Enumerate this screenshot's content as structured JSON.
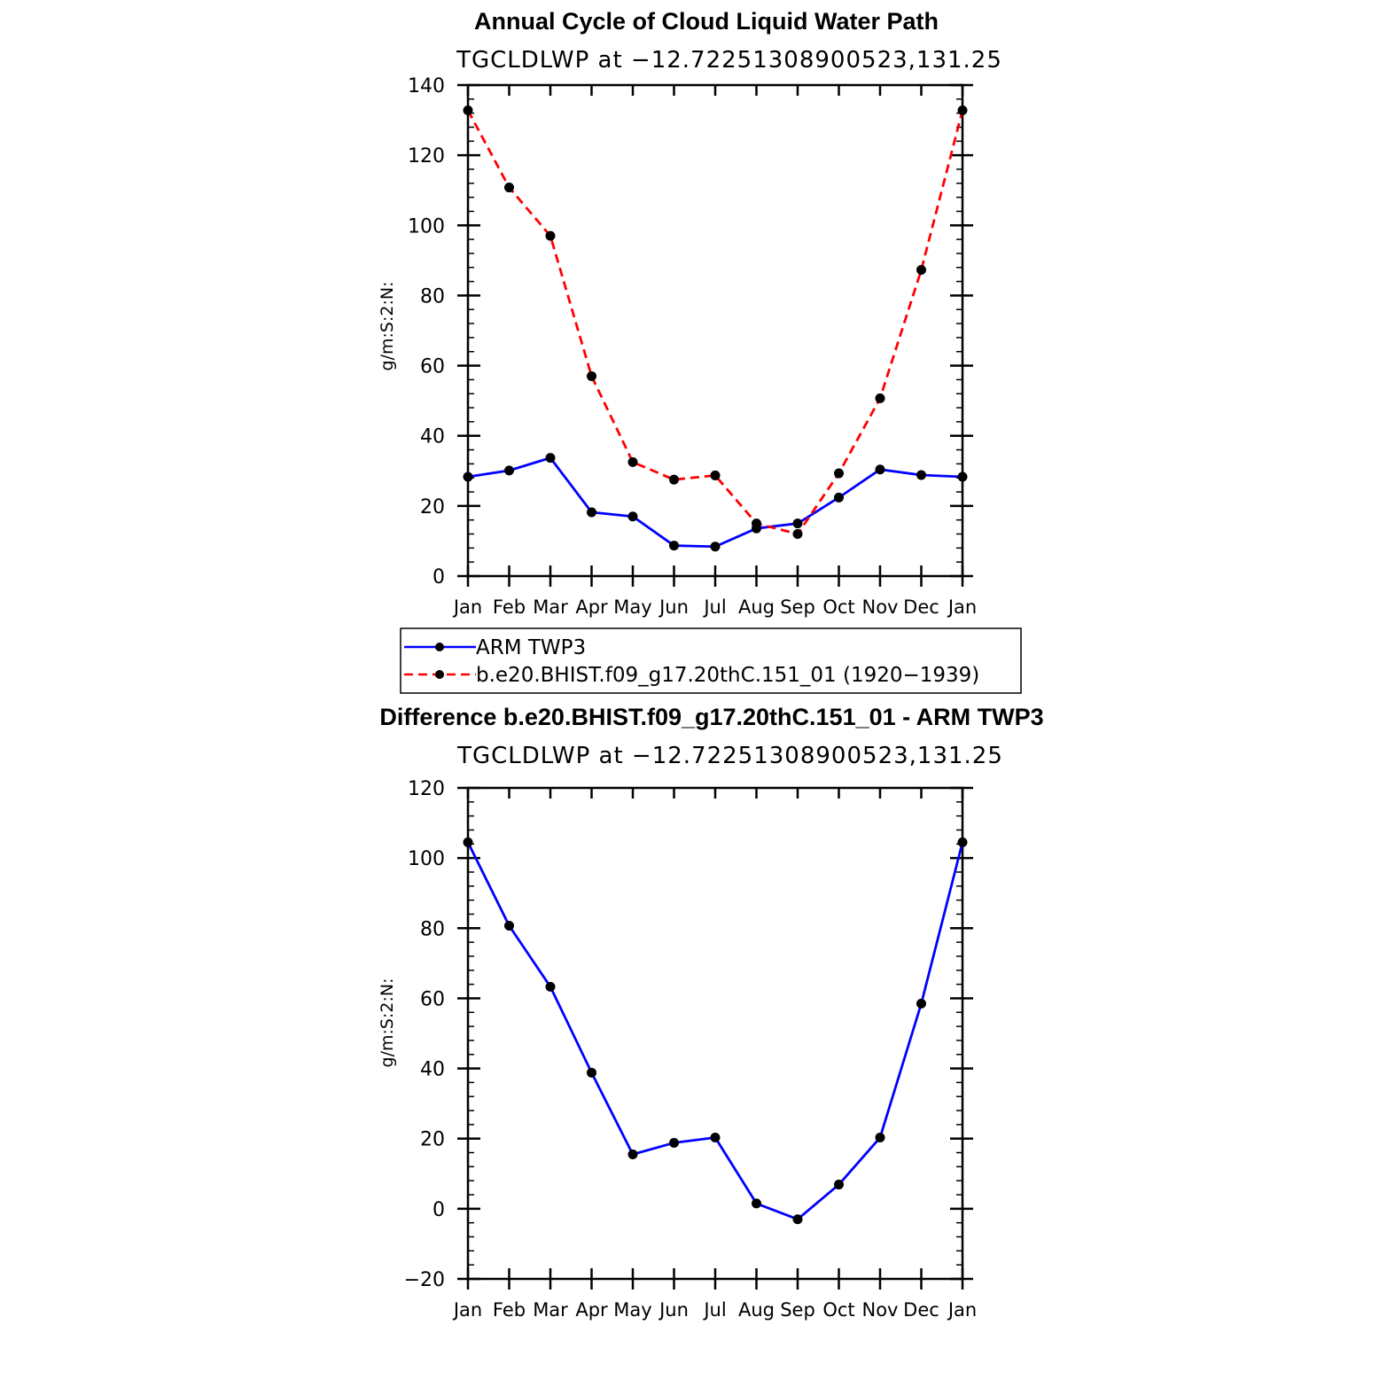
{
  "chart_data": [
    {
      "type": "line",
      "title": "Annual Cycle of Cloud Liquid Water Path",
      "subtitle": "TGCLDLWP  at  −12.72251308900523,131.25",
      "ylabel": "g/m:S:2:N:",
      "xlabel": "",
      "categories": [
        "Jan",
        "Feb",
        "Mar",
        "Apr",
        "May",
        "Jun",
        "Jul",
        "Aug",
        "Sep",
        "Oct",
        "Nov",
        "Dec",
        "Jan"
      ],
      "ylim": [
        0,
        140
      ],
      "yticks": [
        0,
        20,
        40,
        60,
        80,
        100,
        120,
        140
      ],
      "yticklabels": [
        "0",
        "20",
        "40",
        "60",
        "80",
        "100",
        "120",
        "140"
      ],
      "series": [
        {
          "name": "ARM TWP3",
          "color": "#0000ff",
          "dash": "solid",
          "values": [
            28.3,
            30.1,
            33.7,
            18.2,
            17.0,
            8.7,
            8.4,
            13.6,
            15.0,
            22.4,
            30.4,
            28.8,
            28.3
          ]
        },
        {
          "name": "b.e20.BHIST.f09_g17.20thC.151_01 (1920−1939)",
          "color": "#ff0000",
          "dash": "dashed",
          "values": [
            132.8,
            110.8,
            97.0,
            57.0,
            32.5,
            27.5,
            28.7,
            15.0,
            12.0,
            29.3,
            50.7,
            87.3,
            132.8
          ]
        }
      ],
      "legend_placement": "below"
    },
    {
      "type": "line",
      "title": "Difference b.e20.BHIST.f09_g17.20thC.151_01 - ARM TWP3",
      "subtitle": "TGCLDLWP  at  −12.72251308900523,131.25",
      "ylabel": "g/m:S:2:N:",
      "xlabel": "",
      "categories": [
        "Jan",
        "Feb",
        "Mar",
        "Apr",
        "May",
        "Jun",
        "Jul",
        "Aug",
        "Sep",
        "Oct",
        "Nov",
        "Dec",
        "Jan"
      ],
      "ylim": [
        -20,
        120
      ],
      "yticks": [
        -20,
        0,
        20,
        40,
        60,
        80,
        100,
        120
      ],
      "yticklabels": [
        "−20",
        "0",
        "20",
        "40",
        "60",
        "80",
        "100",
        "120"
      ],
      "series": [
        {
          "name": "",
          "color": "#0000ff",
          "dash": "solid",
          "values": [
            104.5,
            80.7,
            63.3,
            38.8,
            15.5,
            18.8,
            20.3,
            1.5,
            -3.0,
            6.9,
            20.3,
            58.5,
            104.5
          ]
        }
      ]
    }
  ]
}
